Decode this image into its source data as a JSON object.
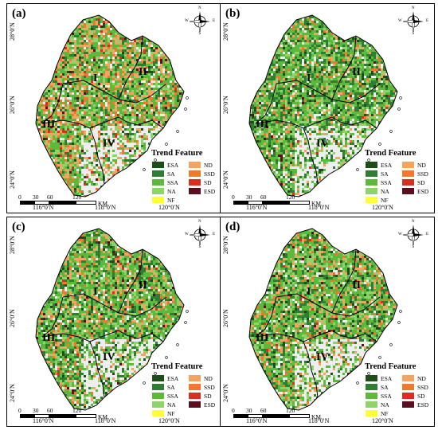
{
  "panels": [
    {
      "label": "(a)",
      "style": "a"
    },
    {
      "label": "(b)",
      "style": "b"
    },
    {
      "label": "(c)",
      "style": "c"
    },
    {
      "label": "(d)",
      "style": "d"
    }
  ],
  "axes": {
    "lat_labels": [
      "28°0′N",
      "26°0′N",
      "24°0′N"
    ],
    "lon_labels": [
      "116°0′N",
      "118°0′N",
      "120°0′N"
    ]
  },
  "regions": [
    "I",
    "II",
    "III",
    "IV"
  ],
  "compass": {
    "n": "N",
    "s": "S",
    "e": "E",
    "w": "W"
  },
  "scale_bar": {
    "ticks": [
      "0",
      "30",
      "60",
      "120"
    ],
    "unit": "KM"
  },
  "legend": {
    "title": "Trend Feature",
    "items": [
      {
        "code": "ESA",
        "color": "#1e4d1a"
      },
      {
        "code": "SA",
        "color": "#2e7d32"
      },
      {
        "code": "SSA",
        "color": "#5db93c"
      },
      {
        "code": "NA",
        "color": "#8fd36a"
      },
      {
        "code": "NF",
        "color": "#ffff33"
      },
      {
        "code": "ND",
        "color": "#f4a460"
      },
      {
        "code": "SSD",
        "color": "#f2782f"
      },
      {
        "code": "SD",
        "color": "#d7301f"
      },
      {
        "code": "ESD",
        "color": "#5a0f1e"
      }
    ]
  },
  "palette": {
    "land_background": "#eeeeee",
    "boundary": "#000000"
  }
}
